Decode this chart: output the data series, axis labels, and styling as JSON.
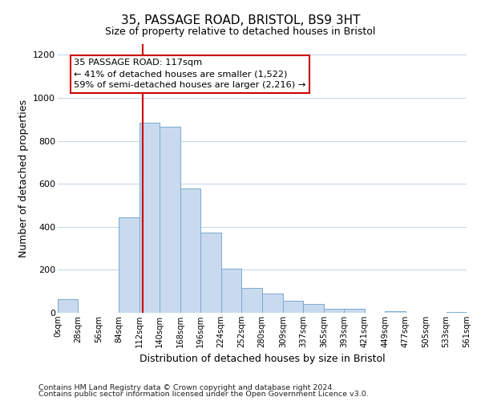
{
  "title": "35, PASSAGE ROAD, BRISTOL, BS9 3HT",
  "subtitle": "Size of property relative to detached houses in Bristol",
  "xlabel": "Distribution of detached houses by size in Bristol",
  "ylabel": "Number of detached properties",
  "bar_edges": [
    0,
    28,
    56,
    84,
    112,
    140,
    168,
    196,
    224,
    252,
    280,
    309,
    337,
    365,
    393,
    421,
    449,
    477,
    505,
    533,
    561
  ],
  "bar_heights": [
    65,
    0,
    0,
    445,
    885,
    865,
    580,
    375,
    205,
    115,
    88,
    55,
    42,
    20,
    18,
    0,
    8,
    0,
    0,
    5
  ],
  "bar_color": "#c9d9ee",
  "bar_edge_color": "#7aaad0",
  "vline_x": 117,
  "vline_color": "#cc0000",
  "ylim": [
    0,
    1250
  ],
  "yticks": [
    0,
    200,
    400,
    600,
    800,
    1000,
    1200
  ],
  "xtick_labels": [
    "0sqm",
    "28sqm",
    "56sqm",
    "84sqm",
    "112sqm",
    "140sqm",
    "168sqm",
    "196sqm",
    "224sqm",
    "252sqm",
    "280sqm",
    "309sqm",
    "337sqm",
    "365sqm",
    "393sqm",
    "421sqm",
    "449sqm",
    "477sqm",
    "505sqm",
    "533sqm",
    "561sqm"
  ],
  "annotation_title": "35 PASSAGE ROAD: 117sqm",
  "annotation_line1": "← 41% of detached houses are smaller (1,522)",
  "annotation_line2": "59% of semi-detached houses are larger (2,216) →",
  "annotation_box_color": "#ffffff",
  "annotation_box_edge": "#cc0000",
  "footnote1": "Contains HM Land Registry data © Crown copyright and database right 2024.",
  "footnote2": "Contains public sector information licensed under the Open Government Licence v3.0.",
  "bg_color": "#ffffff",
  "grid_color": "#c8d8e8"
}
